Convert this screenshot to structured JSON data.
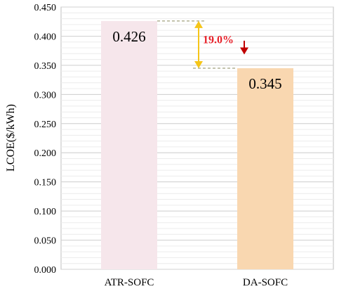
{
  "chart_data": {
    "type": "bar",
    "categories": [
      "ATR-SOFC",
      "DA-SOFC"
    ],
    "values": [
      0.426,
      0.345
    ],
    "data_labels": [
      "0.426",
      "0.345"
    ],
    "ylabel": "LCOE($/kWh)",
    "ylim": [
      0,
      0.45
    ],
    "yticks": [
      "0.000",
      "0.050",
      "0.100",
      "0.150",
      "0.200",
      "0.250",
      "0.300",
      "0.350",
      "0.400",
      "0.450"
    ],
    "grid": true,
    "bar_colors": [
      "#f6e6eb",
      "#f9d7b0"
    ],
    "annotation": {
      "text": "19.0%",
      "from_category": "ATR-SOFC",
      "to_category": "DA-SOFC",
      "color": "#e8212a",
      "double_arrow_color": "#f5c518",
      "down_arrow_color": "#c00000"
    }
  }
}
